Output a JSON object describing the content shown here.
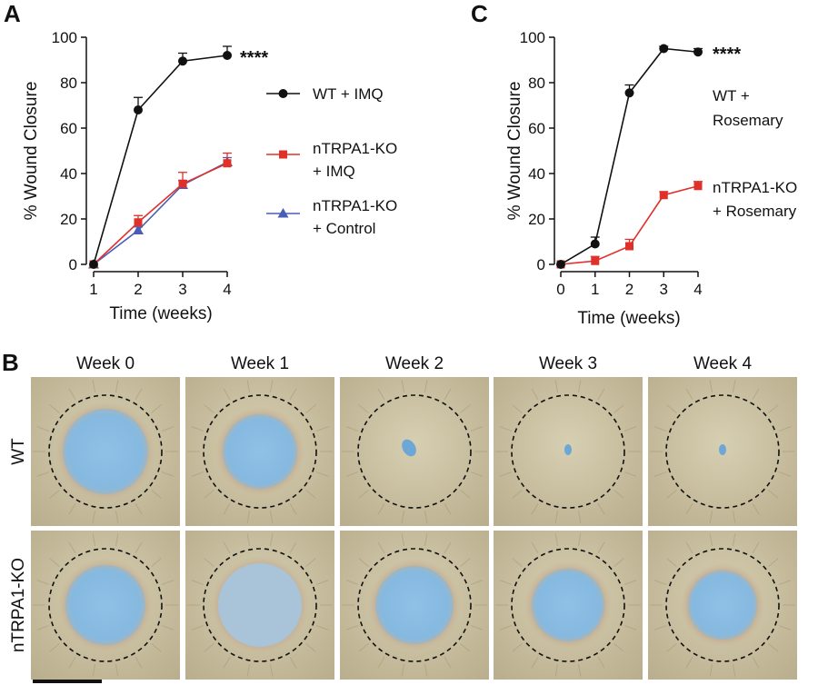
{
  "panels": {
    "a": {
      "letter": "A"
    },
    "b": {
      "letter": "B"
    },
    "c": {
      "letter": "C"
    }
  },
  "chart_data": [
    {
      "type": "line",
      "panel": "A",
      "xlabel": "Time (weeks)",
      "ylabel": "% Wound Closure",
      "xlim": [
        1,
        4
      ],
      "ylim": [
        0,
        100
      ],
      "xticks": [
        1,
        2,
        3,
        4
      ],
      "yticks": [
        0,
        20,
        40,
        60,
        80,
        100
      ],
      "annotation": "****",
      "legend_placement": "right",
      "series": [
        {
          "name": "WT + IMQ",
          "name_lines": [
            "WT + IMQ"
          ],
          "color": "#111111",
          "marker": "circle",
          "x": [
            1,
            2,
            3,
            4
          ],
          "y": [
            0,
            68,
            89.5,
            92
          ],
          "err": [
            0,
            5.5,
            3.5,
            4
          ]
        },
        {
          "name": "nTRPA1-KO + IMQ",
          "name_lines": [
            "nTRPA1-KO",
            "+ IMQ"
          ],
          "color": "#e0302a",
          "marker": "square",
          "x": [
            1,
            2,
            3,
            4
          ],
          "y": [
            0,
            18.5,
            35.5,
            44.5
          ],
          "err": [
            0,
            3,
            5,
            4.5
          ]
        },
        {
          "name": "nTRPA1-KO + Control",
          "name_lines": [
            "nTRPA1-KO",
            "+ Control"
          ],
          "color": "#4a5db5",
          "marker": "triangle",
          "x": [
            1,
            2,
            3,
            4
          ],
          "y": [
            0,
            15,
            35,
            45
          ],
          "err": [
            0,
            1.5,
            2,
            2
          ]
        }
      ]
    },
    {
      "type": "line",
      "panel": "C",
      "xlabel": "Time (weeks)",
      "ylabel": "% Wound Closure",
      "xlim": [
        0,
        4
      ],
      "ylim": [
        0,
        100
      ],
      "xticks": [
        0,
        1,
        2,
        3,
        4
      ],
      "yticks": [
        0,
        20,
        40,
        60,
        80,
        100
      ],
      "annotation": "****",
      "legend_placement": "inline",
      "series": [
        {
          "name": "WT + Rosemary",
          "name_lines": [
            "WT +",
            "Rosemary"
          ],
          "color": "#111111",
          "marker": "circle",
          "x": [
            0,
            1,
            2,
            3,
            4
          ],
          "y": [
            0,
            9,
            75.5,
            95,
            93.5
          ],
          "err": [
            0,
            3,
            3.5,
            1,
            1.5
          ]
        },
        {
          "name": "nTRPA1-KO + Rosemary",
          "name_lines": [
            "nTRPA1-KO",
            "+ Rosemary"
          ],
          "color": "#e0302a",
          "marker": "square",
          "x": [
            0,
            1,
            2,
            3,
            4
          ],
          "y": [
            0,
            1.5,
            8,
            30.5,
            34.5
          ],
          "err": [
            0,
            2,
            3,
            1.5,
            2
          ]
        }
      ]
    }
  ],
  "photo_grid": {
    "columns": [
      "Week 0",
      "Week 1",
      "Week 2",
      "Week 3",
      "Week 4"
    ],
    "rows": [
      "WT",
      "nTRPA1-KO"
    ]
  }
}
